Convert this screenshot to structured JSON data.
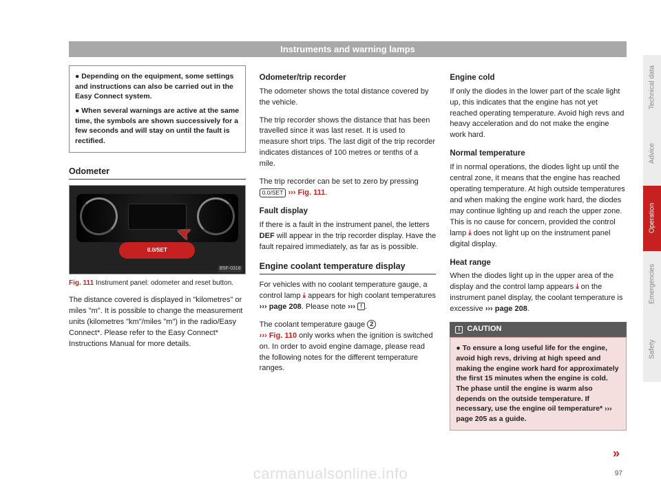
{
  "header": "Instruments and warning lamps",
  "tabs": [
    "Technical data",
    "Advice",
    "Operation",
    "Emergencies",
    "Safety"
  ],
  "active_tab": 2,
  "pagenum": "97",
  "cont": "»",
  "watermark": "carmanualsonline.info",
  "col1": {
    "notebox": {
      "p1": "● Depending on the equipment, some settings and instructions can also be carried out in the Easy Connect system.",
      "p2": "● When several warnings are active at the same time, the symbols are shown successively for a few seconds and will stay on until the fault is rectified."
    },
    "section": "Odometer",
    "fig_tag": "B5F-0318",
    "btn_label": "0.0/SET",
    "caption_red": "Fig. 111",
    "caption_text": "  Instrument panel: odometer and reset button.",
    "body": "The distance covered is displayed in \"kilometres\" or miles \"m\". It is possible to change the measurement units (kilometres \"km\"/miles \"m\") in the radio/Easy Connect*. Please refer to the Easy Connect* Instructions Manual for more details."
  },
  "col2": {
    "h1": "Odometer/trip recorder",
    "p1": "The odometer shows the total distance covered by the vehicle.",
    "p2": "The trip recorder shows the distance that has been travelled since it was last reset. It is used to measure short trips. The last digit of the trip recorder indicates distances of 100 metres or tenths of a mile.",
    "p3a": "The trip recorder can be set to zero by pressing ",
    "p3_btn": "0.0/SET",
    "p3_ref": " ››› Fig. 111",
    "p3b": ".",
    "h2": "Fault display",
    "p4a": "If there is a fault in the instrument panel, the letters ",
    "p4_def": "DEF",
    "p4b": " will appear in the trip recorder display. Have the fault repaired immediately, as far as is possible.",
    "section2": "Engine coolant temperature display",
    "p5a": "For vehicles with no coolant temperature gauge, a control lamp ",
    "p5b": " appears for high coolant temperatures ",
    "p5_ref": "››› page 208",
    "p5c": ". Please note ",
    "p5_ref2": "››› ",
    "p5d": ".",
    "p6a": "The coolant temperature gauge ",
    "p6_num": "2",
    "p6_ref": "››› Fig. 110",
    "p6b": " only works when the ignition is switched on. In order to avoid engine damage, please read the following notes for the different temperature ranges."
  },
  "col3": {
    "h1": "Engine cold",
    "p1": "If only the diodes in the lower part of the scale light up, this indicates that the engine has not yet reached operating temperature. Avoid high revs and heavy acceleration and do not make the engine work hard.",
    "h2": "Normal temperature",
    "p2a": "If in normal operations, the diodes light up until the central zone, it means that the engine has reached operating temperature. At high outside temperatures and when making the engine work hard, the diodes may continue lighting up and reach the upper zone. This is no cause for concern, provided the control lamp ",
    "p2b": " does not light up on the instrument panel digital display.",
    "h3": "Heat range",
    "p3a": "When the diodes light up in the upper area of the display and the control lamp appears ",
    "p3b": " on the instrument panel display, the coolant temperature is excessive ",
    "p3_ref": "››› page 208",
    "p3c": ".",
    "caution_head": "CAUTION",
    "caution_body_a": "● To ensure a long useful life for the engine, avoid high revs, driving at high speed and making the engine work hard for approximately the first 15 minutes when the engine is cold. The phase until the engine is warm also depends on the outside temperature. If necessary, use the engine oil temperature* ",
    "caution_ref": "››› page 205",
    "caution_body_b": " as a guide."
  }
}
